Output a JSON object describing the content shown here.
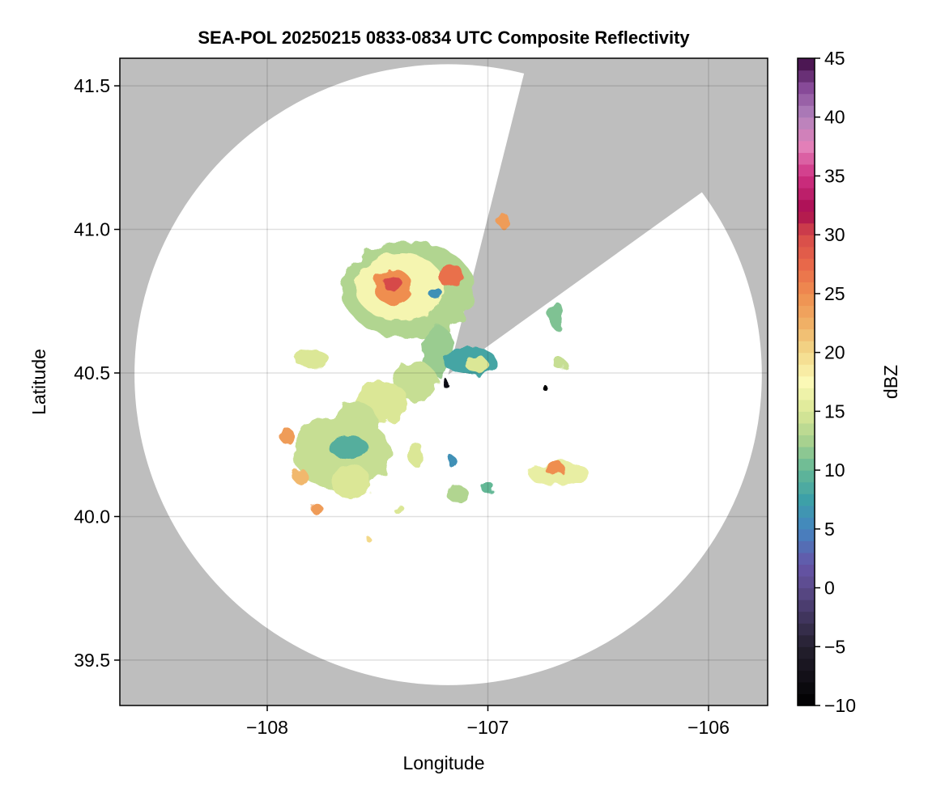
{
  "chart_data": {
    "type": "heatmap",
    "title": "SEA-POL 20250215 0833-0834 UTC Composite Reflectivity",
    "xlabel": "Longitude",
    "ylabel": "Latitude",
    "xlim": [
      -108.668,
      -105.732
    ],
    "ylim": [
      39.342,
      41.596
    ],
    "xticks": [
      -108,
      -107,
      -106
    ],
    "xtick_labels": [
      "−108",
      "−107",
      "−106"
    ],
    "yticks": [
      39.5,
      40.0,
      40.5,
      41.0,
      41.5
    ],
    "ytick_labels": [
      "39.5",
      "40.0",
      "40.5",
      "41.0",
      "41.5"
    ],
    "grid": true,
    "background_color": "#bebebe",
    "no_echo_color": "#ffffff",
    "radar": {
      "lon": -107.18,
      "lat": 40.494,
      "range_km": 120,
      "blocked_sector_azimuth_deg": [
        14,
        54
      ]
    },
    "colorbar": {
      "label": "dBZ",
      "range": [
        -10,
        45
      ],
      "step": 1,
      "ticks": [
        -10,
        -5,
        0,
        5,
        10,
        15,
        20,
        25,
        30,
        35,
        40,
        45
      ],
      "tick_labels": [
        "−10",
        "−5",
        "0",
        "5",
        "10",
        "15",
        "20",
        "25",
        "30",
        "35",
        "40",
        "45"
      ],
      "placement": "right",
      "stops": [
        [
          -10,
          "#000000"
        ],
        [
          -5,
          "#25202f"
        ],
        [
          0,
          "#5b4a8a"
        ],
        [
          2,
          "#6655a8"
        ],
        [
          5,
          "#4485c0"
        ],
        [
          7.5,
          "#3da0a8"
        ],
        [
          10,
          "#64b896"
        ],
        [
          12.5,
          "#a7d18f"
        ],
        [
          15,
          "#dbe796"
        ],
        [
          17.5,
          "#fbf9b6"
        ],
        [
          20,
          "#f3d98a"
        ],
        [
          22.5,
          "#f0b066"
        ],
        [
          25,
          "#ef8e50"
        ],
        [
          27.5,
          "#e8684a"
        ],
        [
          30,
          "#d64a4a"
        ],
        [
          32,
          "#a90c4f"
        ],
        [
          35,
          "#cf3184"
        ],
        [
          37.5,
          "#e37fb8"
        ],
        [
          40,
          "#b384bd"
        ],
        [
          42.5,
          "#874a98"
        ],
        [
          45,
          "#3d0a42"
        ]
      ]
    },
    "echoes": [
      {
        "lon": -107.36,
        "lat": 40.79,
        "rlon": 0.3,
        "rlat": 0.17,
        "dbz": 13
      },
      {
        "lon": -107.4,
        "lat": 40.8,
        "rlon": 0.2,
        "rlat": 0.12,
        "dbz": 17
      },
      {
        "lon": -107.43,
        "lat": 40.8,
        "rlon": 0.09,
        "rlat": 0.06,
        "dbz": 25
      },
      {
        "lon": -107.43,
        "lat": 40.81,
        "rlon": 0.04,
        "rlat": 0.03,
        "dbz": 30
      },
      {
        "lon": -107.17,
        "lat": 40.84,
        "rlon": 0.06,
        "rlat": 0.04,
        "dbz": 27
      },
      {
        "lon": -107.24,
        "lat": 40.78,
        "rlon": 0.03,
        "rlat": 0.02,
        "dbz": 6
      },
      {
        "lon": -107.23,
        "lat": 40.58,
        "rlon": 0.07,
        "rlat": 0.09,
        "dbz": 12
      },
      {
        "lon": -107.33,
        "lat": 40.47,
        "rlon": 0.1,
        "rlat": 0.07,
        "dbz": 14
      },
      {
        "lon": -107.48,
        "lat": 40.4,
        "rlon": 0.12,
        "rlat": 0.07,
        "dbz": 15
      },
      {
        "lon": -107.6,
        "lat": 40.33,
        "rlon": 0.1,
        "rlat": 0.07,
        "dbz": 14
      },
      {
        "lon": -107.66,
        "lat": 40.22,
        "rlon": 0.22,
        "rlat": 0.13,
        "dbz": 14
      },
      {
        "lon": -107.63,
        "lat": 40.24,
        "rlon": 0.09,
        "rlat": 0.04,
        "dbz": 9
      },
      {
        "lon": -107.62,
        "lat": 40.12,
        "rlon": 0.09,
        "rlat": 0.06,
        "dbz": 15
      },
      {
        "lon": -107.91,
        "lat": 40.28,
        "rlon": 0.03,
        "rlat": 0.03,
        "dbz": 24
      },
      {
        "lon": -107.85,
        "lat": 40.14,
        "rlon": 0.03,
        "rlat": 0.03,
        "dbz": 22
      },
      {
        "lon": -107.78,
        "lat": 40.03,
        "rlon": 0.025,
        "rlat": 0.02,
        "dbz": 24
      },
      {
        "lon": -107.8,
        "lat": 40.55,
        "rlon": 0.08,
        "rlat": 0.03,
        "dbz": 15
      },
      {
        "lon": -107.08,
        "lat": 40.54,
        "rlon": 0.12,
        "rlat": 0.05,
        "dbz": 8
      },
      {
        "lon": -107.05,
        "lat": 40.53,
        "rlon": 0.05,
        "rlat": 0.03,
        "dbz": 15
      },
      {
        "lon": -106.68,
        "lat": 40.15,
        "rlon": 0.14,
        "rlat": 0.04,
        "dbz": 16
      },
      {
        "lon": -106.7,
        "lat": 40.17,
        "rlon": 0.05,
        "rlat": 0.02,
        "dbz": 25
      },
      {
        "lon": -106.69,
        "lat": 40.7,
        "rlon": 0.03,
        "rlat": 0.05,
        "dbz": 11
      },
      {
        "lon": -106.67,
        "lat": 40.53,
        "rlon": 0.03,
        "rlat": 0.02,
        "dbz": 14
      },
      {
        "lon": -107.33,
        "lat": 40.22,
        "rlon": 0.04,
        "rlat": 0.04,
        "dbz": 15
      },
      {
        "lon": -107.16,
        "lat": 40.19,
        "rlon": 0.02,
        "rlat": 0.02,
        "dbz": 6
      },
      {
        "lon": -107.14,
        "lat": 40.08,
        "rlon": 0.05,
        "rlat": 0.03,
        "dbz": 13
      },
      {
        "lon": -107.0,
        "lat": 40.1,
        "rlon": 0.03,
        "rlat": 0.02,
        "dbz": 10
      },
      {
        "lon": -107.41,
        "lat": 40.03,
        "rlon": 0.02,
        "rlat": 0.02,
        "dbz": 15
      },
      {
        "lon": -107.54,
        "lat": 39.92,
        "rlon": 0.01,
        "rlat": 0.01,
        "dbz": 20
      },
      {
        "lon": -106.93,
        "lat": 41.03,
        "rlon": 0.02,
        "rlat": 0.03,
        "dbz": 24
      },
      {
        "lon": -107.2,
        "lat": 40.47,
        "rlon": 0.015,
        "rlat": 0.015,
        "dbz": -8
      },
      {
        "lon": -106.75,
        "lat": 40.455,
        "rlon": 0.01,
        "rlat": 0.01,
        "dbz": -10
      }
    ]
  }
}
